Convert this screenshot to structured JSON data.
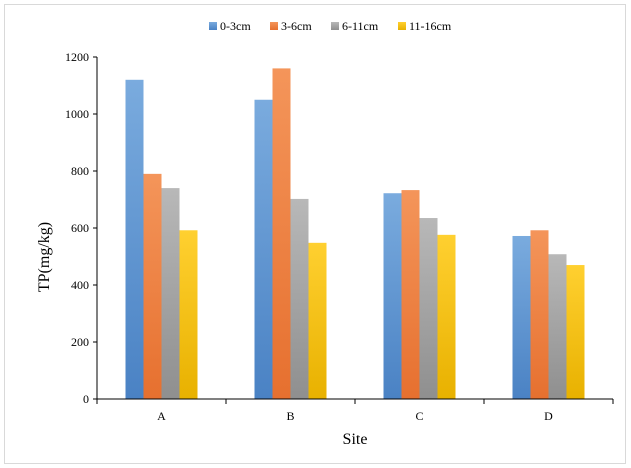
{
  "chart_data": {
    "type": "bar",
    "title": "",
    "xlabel": "Site",
    "ylabel": "TP(mg/kg)",
    "categories": [
      "A",
      "B",
      "C",
      "D"
    ],
    "series": [
      {
        "name": "0-3cm",
        "values": [
          1120,
          1050,
          722,
          572
        ]
      },
      {
        "name": "3-6cm",
        "values": [
          790,
          1160,
          733,
          592
        ]
      },
      {
        "name": "6-11cm",
        "values": [
          740,
          702,
          635,
          508
        ]
      },
      {
        "name": "11-16cm",
        "values": [
          592,
          548,
          576,
          470
        ]
      }
    ],
    "ylim": [
      0,
      1200
    ],
    "yticks": [
      0,
      200,
      400,
      600,
      800,
      1000,
      1200
    ],
    "grid": false,
    "legend_position": "top-center",
    "colors": {
      "0-3cm": [
        "#7aabde",
        "#4a82c4"
      ],
      "3-6cm": [
        "#f4955a",
        "#e6702f"
      ],
      "6-11cm": [
        "#b8b8b8",
        "#8f8f8f"
      ],
      "11-16cm": [
        "#ffd030",
        "#e8b100"
      ]
    }
  }
}
